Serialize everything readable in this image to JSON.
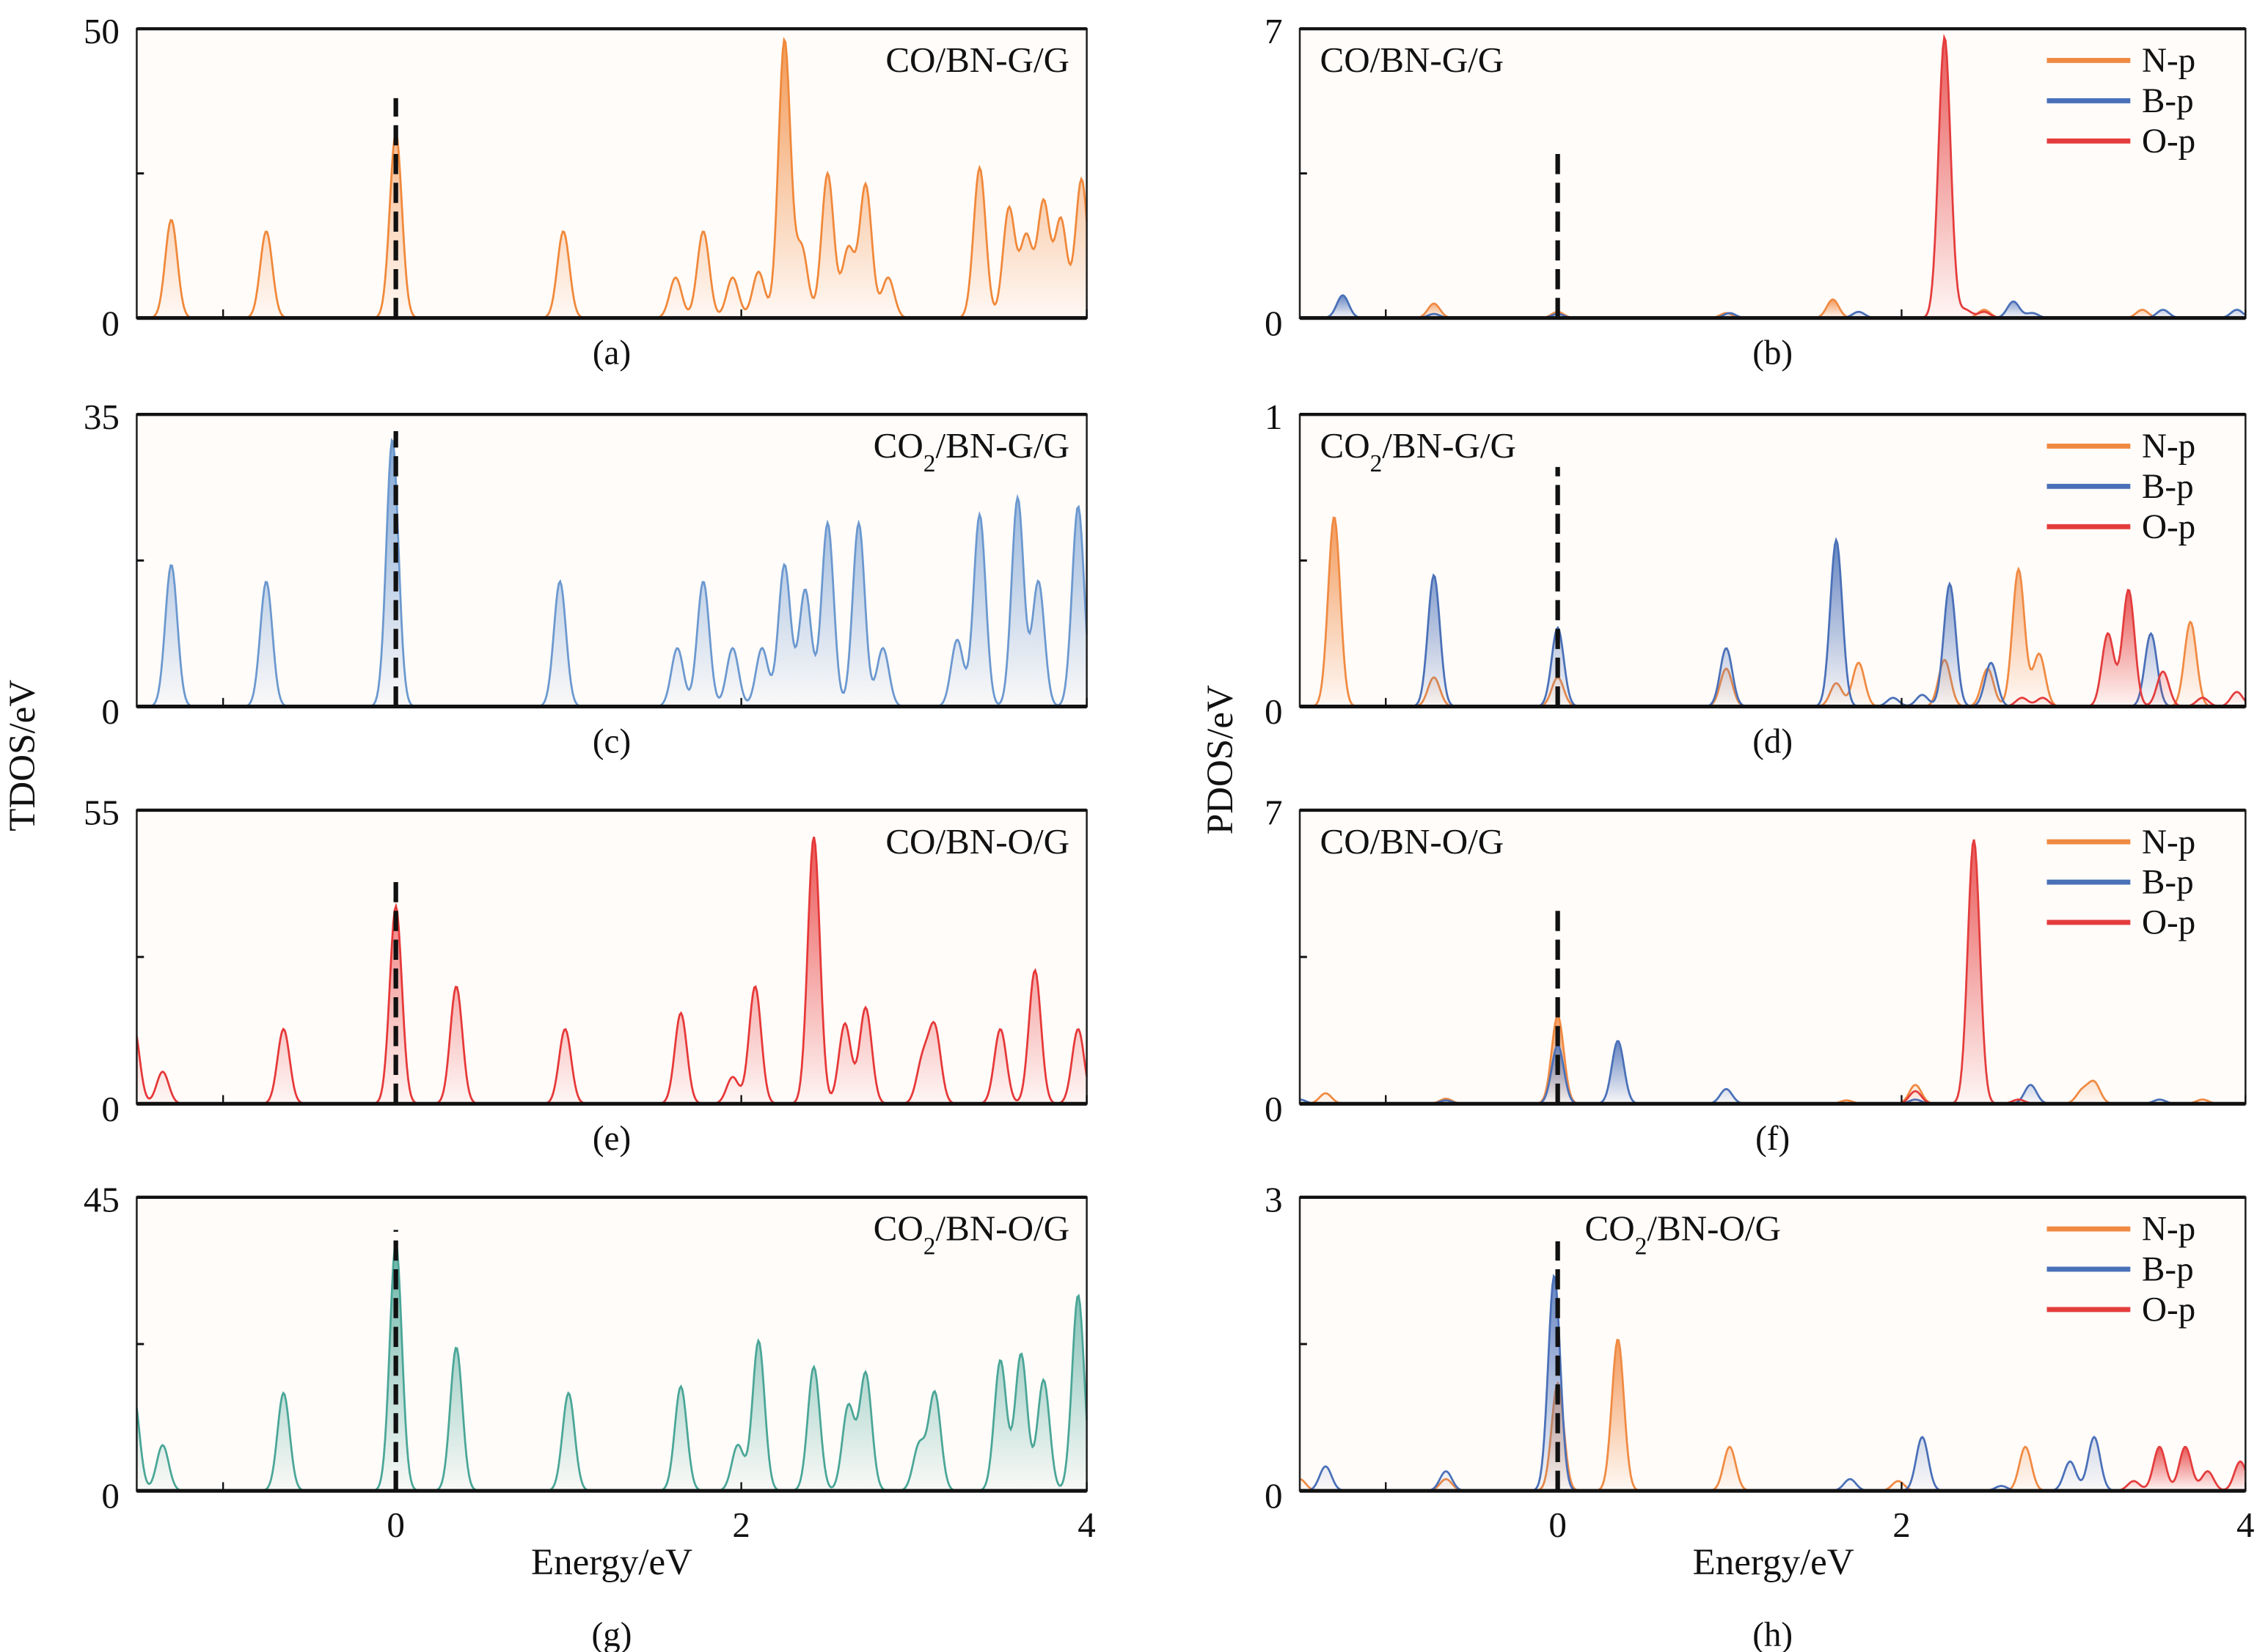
{
  "figure": {
    "left_ylabel": "TDOS/eV",
    "right_ylabel": "PDOS/eV",
    "xlabel": "Energy/eV",
    "fermi_line_style": "dashed-black"
  },
  "chart_data": [
    {
      "id": "a",
      "type": "area",
      "panel_label": "(a)",
      "system_label": "CO/BN-G/G",
      "system_sub": "",
      "quantity": "TDOS",
      "ylim": [
        0,
        50
      ],
      "xlim": [
        -1.5,
        4
      ],
      "ytick_labels": [
        "0",
        "50"
      ],
      "xticks": [
        -1,
        0,
        2,
        4
      ],
      "xtick_labels": [],
      "fermi_level": 0,
      "fermi_height": 38,
      "label_position": "top-right",
      "legend": [],
      "series": [
        {
          "name": "TDOS",
          "color": "#f0883a",
          "peaks": [
            [
              -1.3,
              17
            ],
            [
              -0.75,
              15
            ],
            [
              0.0,
              32
            ],
            [
              0.97,
              15
            ],
            [
              1.62,
              7
            ],
            [
              1.78,
              15
            ],
            [
              1.95,
              7
            ],
            [
              2.1,
              8
            ],
            [
              2.25,
              48
            ],
            [
              2.35,
              12
            ],
            [
              2.5,
              25
            ],
            [
              2.62,
              12
            ],
            [
              2.72,
              23
            ],
            [
              2.85,
              7
            ],
            [
              3.38,
              26
            ],
            [
              3.55,
              19
            ],
            [
              3.65,
              14
            ],
            [
              3.75,
              20
            ],
            [
              3.85,
              17
            ],
            [
              3.97,
              24
            ]
          ]
        }
      ]
    },
    {
      "id": "b",
      "type": "area",
      "panel_label": "(b)",
      "system_label": "CO/BN-G/G",
      "system_sub": "",
      "quantity": "PDOS",
      "ylim": [
        0,
        7
      ],
      "xlim": [
        -1.5,
        4
      ],
      "ytick_labels": [
        "0",
        "7"
      ],
      "xticks": [
        -1,
        0,
        2,
        4
      ],
      "xtick_labels": [],
      "fermi_level": 0,
      "fermi_height": 4.1,
      "label_position": "top-left",
      "legend": [
        "N-p",
        "B-p",
        "O-p"
      ],
      "series": [
        {
          "name": "N-p",
          "color": "#f08a42",
          "peaks": [
            [
              -0.72,
              0.35
            ],
            [
              0.0,
              0.15
            ],
            [
              0.98,
              0.12
            ],
            [
              1.6,
              0.45
            ],
            [
              2.48,
              0.2
            ],
            [
              3.4,
              0.2
            ]
          ]
        },
        {
          "name": "B-p",
          "color": "#4a70b8",
          "peaks": [
            [
              -1.25,
              0.55
            ],
            [
              -0.72,
              0.1
            ],
            [
              0.0,
              0.1
            ],
            [
              1.0,
              0.12
            ],
            [
              1.75,
              0.15
            ],
            [
              2.65,
              0.4
            ],
            [
              2.76,
              0.12
            ],
            [
              3.52,
              0.2
            ],
            [
              3.95,
              0.2
            ]
          ]
        },
        {
          "name": "O-p",
          "color": "#e43c3c",
          "peaks": [
            [
              2.25,
              6.8
            ],
            [
              2.37,
              0.2
            ],
            [
              2.48,
              0.15
            ]
          ]
        }
      ]
    },
    {
      "id": "c",
      "type": "area",
      "panel_label": "(c)",
      "system_label": "CO/BN-G/G",
      "system_sub": "2",
      "quantity": "TDOS",
      "ylim": [
        0,
        35
      ],
      "xlim": [
        -1.5,
        4
      ],
      "ytick_labels": [
        "0",
        "35"
      ],
      "xticks": [
        -1,
        0,
        2,
        4
      ],
      "xtick_labels": [],
      "fermi_level": 0,
      "fermi_height": 33,
      "label_position": "top-right",
      "legend": [],
      "series": [
        {
          "name": "TDOS",
          "color": "#6b98cf",
          "peaks": [
            [
              -1.3,
              17
            ],
            [
              -0.75,
              15
            ],
            [
              -0.02,
              32
            ],
            [
              0.95,
              15
            ],
            [
              1.63,
              7
            ],
            [
              1.78,
              15
            ],
            [
              1.95,
              7
            ],
            [
              2.12,
              7
            ],
            [
              2.25,
              17
            ],
            [
              2.37,
              14
            ],
            [
              2.5,
              22
            ],
            [
              2.68,
              22
            ],
            [
              2.82,
              7
            ],
            [
              3.25,
              8
            ],
            [
              3.38,
              23
            ],
            [
              3.6,
              25
            ],
            [
              3.72,
              15
            ],
            [
              3.95,
              24
            ]
          ]
        }
      ]
    },
    {
      "id": "d",
      "type": "area",
      "panel_label": "(d)",
      "system_label": "CO/BN-G/G",
      "system_sub": "2",
      "quantity": "PDOS",
      "ylim": [
        0,
        1
      ],
      "xlim": [
        -1.5,
        4
      ],
      "ytick_labels": [
        "0",
        "1"
      ],
      "xticks": [
        -1,
        0,
        2,
        4
      ],
      "xtick_labels": [],
      "fermi_level": 0,
      "fermi_height": 0.82,
      "label_position": "top-left",
      "legend": [
        "N-p",
        "B-p",
        "O-p"
      ],
      "series": [
        {
          "name": "N-p",
          "color": "#f08a42",
          "peaks": [
            [
              -1.3,
              0.65
            ],
            [
              -0.72,
              0.1
            ],
            [
              0.0,
              0.1
            ],
            [
              0.98,
              0.13
            ],
            [
              1.62,
              0.08
            ],
            [
              1.75,
              0.15
            ],
            [
              2.25,
              0.16
            ],
            [
              2.5,
              0.13
            ],
            [
              2.68,
              0.47
            ],
            [
              2.8,
              0.18
            ],
            [
              3.68,
              0.29
            ]
          ]
        },
        {
          "name": "B-p",
          "color": "#4a70b8",
          "peaks": [
            [
              -0.72,
              0.45
            ],
            [
              0.0,
              0.27
            ],
            [
              0.98,
              0.2
            ],
            [
              1.62,
              0.57
            ],
            [
              1.95,
              0.03
            ],
            [
              2.12,
              0.04
            ],
            [
              2.28,
              0.42
            ],
            [
              2.52,
              0.15
            ],
            [
              3.45,
              0.25
            ]
          ]
        },
        {
          "name": "O-p",
          "color": "#e43c3c",
          "peaks": [
            [
              2.7,
              0.03
            ],
            [
              2.82,
              0.03
            ],
            [
              3.2,
              0.25
            ],
            [
              3.32,
              0.4
            ],
            [
              3.52,
              0.12
            ],
            [
              3.75,
              0.03
            ],
            [
              3.95,
              0.05
            ]
          ]
        }
      ]
    },
    {
      "id": "e",
      "type": "area",
      "panel_label": "(e)",
      "system_label": "CO/BN-O/G",
      "system_sub": "",
      "quantity": "TDOS",
      "ylim": [
        0,
        55
      ],
      "xlim": [
        -1.5,
        4
      ],
      "ytick_labels": [
        "0",
        "55"
      ],
      "xticks": [
        -1,
        0,
        2,
        4
      ],
      "xtick_labels": [],
      "fermi_level": 0,
      "fermi_height": 42,
      "label_position": "top-right",
      "legend": [],
      "series": [
        {
          "name": "TDOS",
          "color": "#e63838",
          "peaks": [
            [
              -1.52,
              15
            ],
            [
              -1.35,
              6
            ],
            [
              -0.65,
              14
            ],
            [
              0.0,
              37
            ],
            [
              0.35,
              22
            ],
            [
              0.98,
              14
            ],
            [
              1.65,
              17
            ],
            [
              1.95,
              5
            ],
            [
              2.08,
              22
            ],
            [
              2.42,
              50
            ],
            [
              2.6,
              15
            ],
            [
              2.72,
              18
            ],
            [
              3.05,
              8
            ],
            [
              3.12,
              14
            ],
            [
              3.5,
              14
            ],
            [
              3.7,
              25
            ],
            [
              3.95,
              14
            ]
          ]
        }
      ]
    },
    {
      "id": "f",
      "type": "area",
      "panel_label": "(f)",
      "system_label": "CO/BN-O/G",
      "system_sub": "",
      "quantity": "PDOS",
      "ylim": [
        0,
        7
      ],
      "xlim": [
        -1.5,
        4
      ],
      "ytick_labels": [
        "0",
        "7"
      ],
      "xticks": [
        -1,
        0,
        2,
        4
      ],
      "xtick_labels": [],
      "fermi_level": 0,
      "fermi_height": 4.7,
      "label_position": "top-left",
      "legend": [
        "N-p",
        "B-p",
        "O-p"
      ],
      "series": [
        {
          "name": "N-p",
          "color": "#f08a42",
          "peaks": [
            [
              -1.35,
              0.25
            ],
            [
              -0.65,
              0.12
            ],
            [
              0.0,
              2.1
            ],
            [
              1.68,
              0.08
            ],
            [
              2.08,
              0.45
            ],
            [
              3.05,
              0.3
            ],
            [
              3.12,
              0.5
            ],
            [
              3.75,
              0.1
            ]
          ]
        },
        {
          "name": "B-p",
          "color": "#4a70b8",
          "peaks": [
            [
              -1.5,
              0.1
            ],
            [
              -0.65,
              0.08
            ],
            [
              0.0,
              1.4
            ],
            [
              0.35,
              1.5
            ],
            [
              0.98,
              0.35
            ],
            [
              2.08,
              0.1
            ],
            [
              2.75,
              0.45
            ],
            [
              3.5,
              0.1
            ]
          ]
        },
        {
          "name": "O-p",
          "color": "#e43c3c",
          "peaks": [
            [
              2.08,
              0.3
            ],
            [
              2.42,
              6.3
            ],
            [
              2.68,
              0.1
            ]
          ]
        }
      ]
    },
    {
      "id": "g",
      "type": "area",
      "panel_label": "(g)",
      "system_label": "CO/BN-O/G",
      "system_sub": "2",
      "quantity": "TDOS",
      "ylim": [
        0,
        45
      ],
      "xlim": [
        -1.5,
        4
      ],
      "ytick_labels": [
        "0",
        "45"
      ],
      "xticks": [
        -1,
        0,
        2,
        4
      ],
      "xtick_labels": [
        "0",
        "2",
        "4"
      ],
      "fermi_level": 0,
      "fermi_height": 40,
      "label_position": "top-right",
      "legend": [],
      "series": [
        {
          "name": "TDOS",
          "color": "#4aa697",
          "peaks": [
            [
              -1.52,
              15
            ],
            [
              -1.35,
              7
            ],
            [
              -0.65,
              15
            ],
            [
              0.0,
              38
            ],
            [
              0.35,
              22
            ],
            [
              1.0,
              15
            ],
            [
              1.65,
              16
            ],
            [
              1.98,
              7
            ],
            [
              2.1,
              23
            ],
            [
              2.42,
              19
            ],
            [
              2.62,
              13
            ],
            [
              2.72,
              18
            ],
            [
              3.03,
              7
            ],
            [
              3.12,
              15
            ],
            [
              3.5,
              20
            ],
            [
              3.62,
              21
            ],
            [
              3.75,
              17
            ],
            [
              3.95,
              30
            ]
          ]
        }
      ]
    },
    {
      "id": "h",
      "type": "area",
      "panel_label": "(h)",
      "system_label": "CO/BN-O/G",
      "system_sub": "2",
      "quantity": "PDOS",
      "ylim": [
        0,
        3
      ],
      "xlim": [
        -1.5,
        4
      ],
      "ytick_labels": [
        "0",
        "3"
      ],
      "xticks": [
        -1,
        0,
        2,
        4
      ],
      "xtick_labels": [
        "0",
        "2",
        "4"
      ],
      "fermi_level": 0,
      "fermi_height": 2.55,
      "label_position": "top-center",
      "legend": [
        "N-p",
        "B-p",
        "O-p"
      ],
      "series": [
        {
          "name": "N-p",
          "color": "#f08a42",
          "peaks": [
            [
              -1.5,
              0.12
            ],
            [
              -0.65,
              0.12
            ],
            [
              0.0,
              1.1
            ],
            [
              0.35,
              1.55
            ],
            [
              1.0,
              0.45
            ],
            [
              1.98,
              0.1
            ],
            [
              2.72,
              0.45
            ]
          ]
        },
        {
          "name": "B-p",
          "color": "#4a70b8",
          "peaks": [
            [
              -1.35,
              0.25
            ],
            [
              -0.65,
              0.2
            ],
            [
              -0.02,
              2.2
            ],
            [
              1.7,
              0.12
            ],
            [
              2.12,
              0.55
            ],
            [
              2.58,
              0.05
            ],
            [
              2.98,
              0.3
            ],
            [
              3.12,
              0.55
            ]
          ]
        },
        {
          "name": "O-p",
          "color": "#e43c3c",
          "peaks": [
            [
              3.35,
              0.1
            ],
            [
              3.5,
              0.45
            ],
            [
              3.65,
              0.45
            ],
            [
              3.78,
              0.2
            ],
            [
              3.97,
              0.3
            ]
          ]
        }
      ]
    }
  ]
}
